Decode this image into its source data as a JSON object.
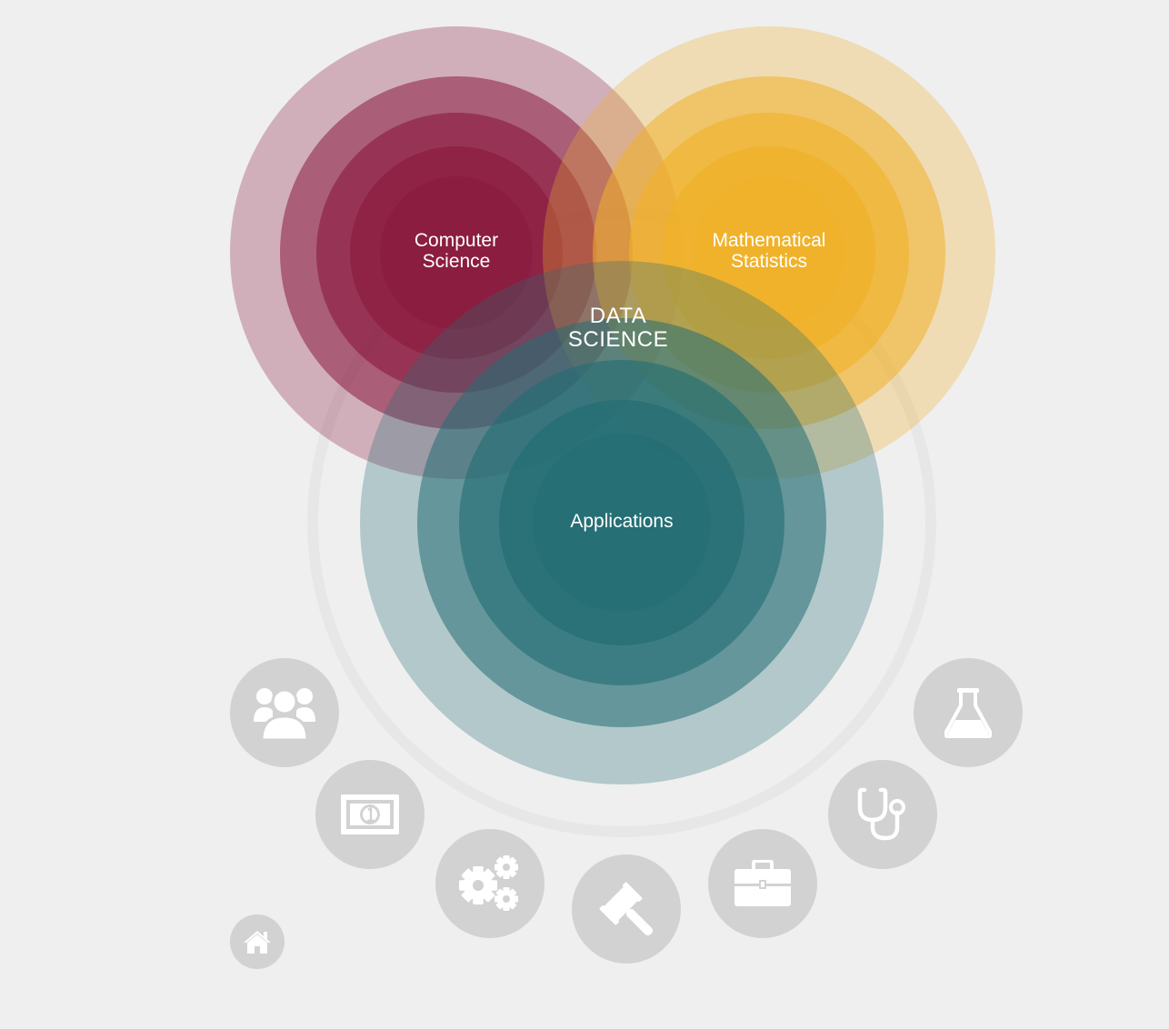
{
  "diagram": {
    "center_label": [
      "DATA",
      "SCIENCE"
    ],
    "circles": [
      {
        "key": "cs",
        "label": [
          "Computer",
          "Science"
        ],
        "color": "#8b1c40"
      },
      {
        "key": "ms",
        "label": [
          "Mathematical",
          "Statistics"
        ],
        "color": "#f0b12a"
      },
      {
        "key": "apps",
        "label": [
          "Applications"
        ],
        "color": "#246e74"
      }
    ]
  },
  "icons": [
    {
      "name": "people-icon"
    },
    {
      "name": "money-icon"
    },
    {
      "name": "gears-icon"
    },
    {
      "name": "gavel-icon"
    },
    {
      "name": "briefcase-icon"
    },
    {
      "name": "stethoscope-icon"
    },
    {
      "name": "flask-icon"
    }
  ],
  "home": {
    "name": "home-icon"
  },
  "colors": {
    "background": "#efefef",
    "icon_circle": "#d2d2d2",
    "icon_glyph": "#ffffff",
    "outer_ring": "#e8e8e8"
  }
}
